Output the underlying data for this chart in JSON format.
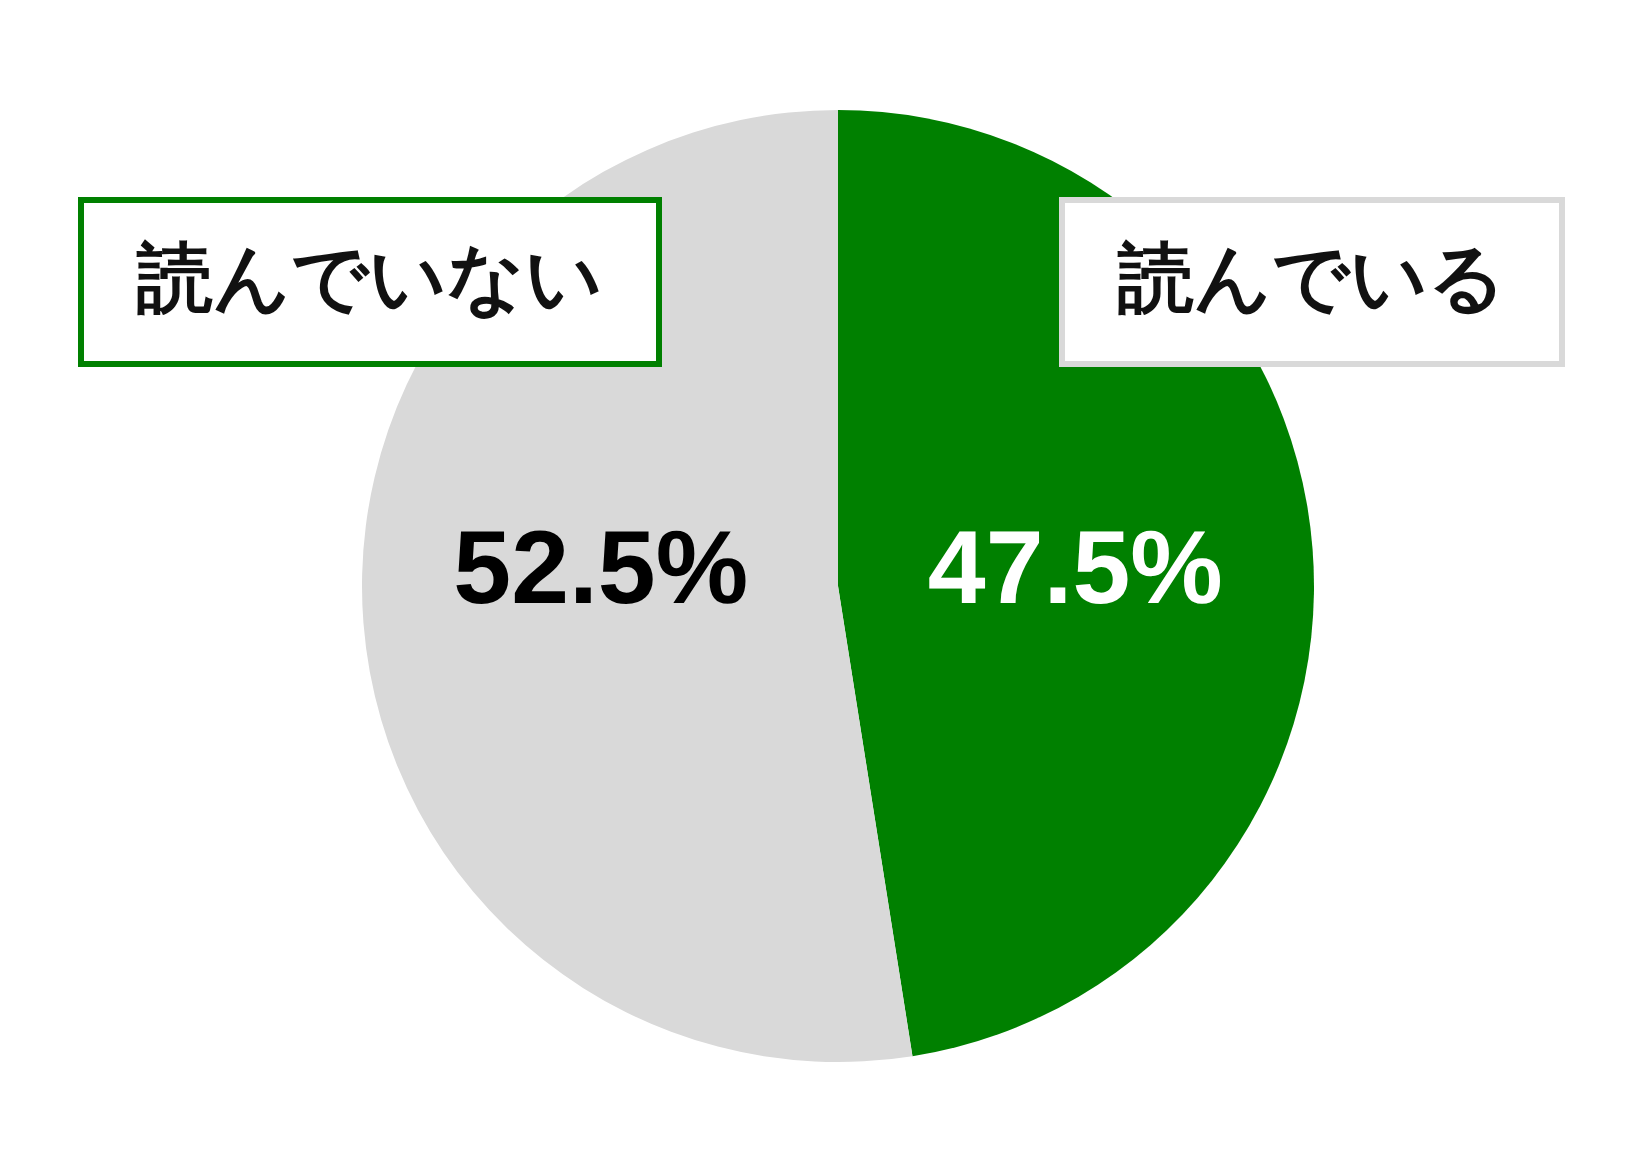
{
  "chart_data": {
    "type": "pie",
    "categories": [
      "読んでいる",
      "読んでいない"
    ],
    "values": [
      47.5,
      52.5
    ],
    "colors": [
      "#008000",
      "#d9d9d9"
    ],
    "value_labels": [
      "47.5%",
      "52.5%"
    ]
  }
}
